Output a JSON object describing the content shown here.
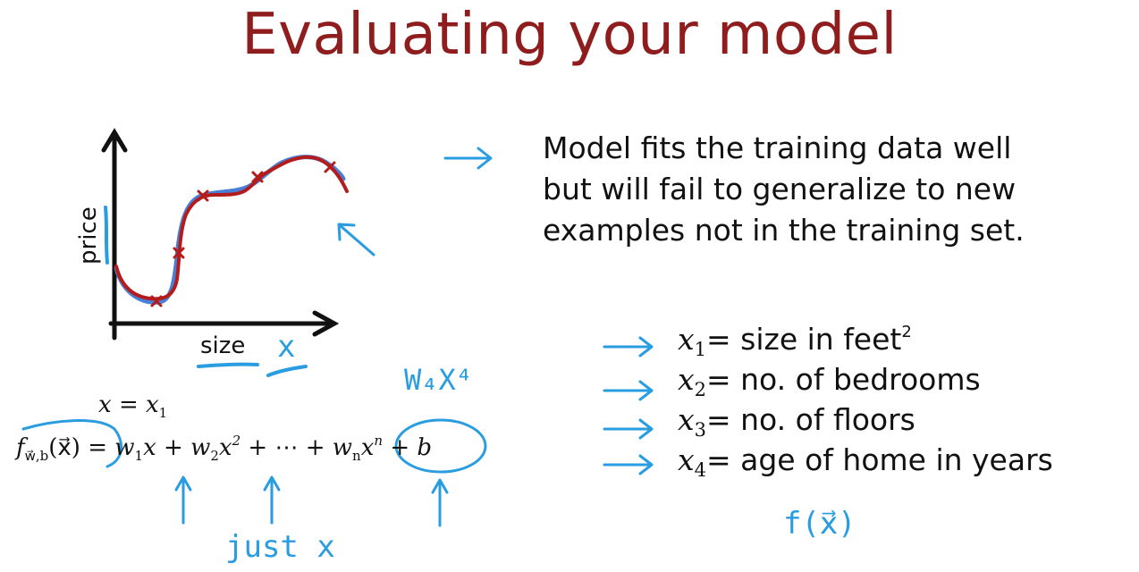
{
  "slide": {
    "title": "Evaluating your model",
    "description_lines": [
      "Model fits the training data well",
      "but will fail to generalize to new",
      "examples not in the training set."
    ]
  },
  "plot": {
    "y_label": "price",
    "x_label": "size",
    "x_var_note": "x"
  },
  "equation": {
    "substitution": {
      "lhs": "x",
      "eq": "= ",
      "rhs": "x",
      "rhs_sub": "1"
    },
    "f": "f",
    "f_sub": "w⃗,b",
    "f_arg": "(x⃗)",
    "equals": "=",
    "w1": "w",
    "w1_sub": "1",
    "x1": "x",
    "plus1": "+",
    "w2": "w",
    "w2_sub": "2",
    "x2": "x",
    "x2_sup": "2",
    "plus_dots": "+ ⋯ +",
    "wn": "w",
    "wn_sub": "n",
    "xn": "x",
    "xn_sup": "n",
    "plus_b": "+ b"
  },
  "annotations": {
    "w4x4": "W₄X⁴",
    "just_x": "just x",
    "f_of_x": "f(x⃗)"
  },
  "features": [
    {
      "var": "x",
      "sub": "1",
      "text": "= size in feet",
      "sup": "2"
    },
    {
      "var": "x",
      "sub": "2",
      "text": "= no. of bedrooms",
      "sup": ""
    },
    {
      "var": "x",
      "sub": "3",
      "text": "= no. of floors",
      "sup": ""
    },
    {
      "var": "x",
      "sub": "4",
      "text": "= age of home in years",
      "sup": ""
    }
  ],
  "colors": {
    "title": "#8f1d1d",
    "annotation_blue": "#2a9ce0",
    "curve_red": "#b41c1c",
    "curve_blue": "#4a7fd6"
  }
}
